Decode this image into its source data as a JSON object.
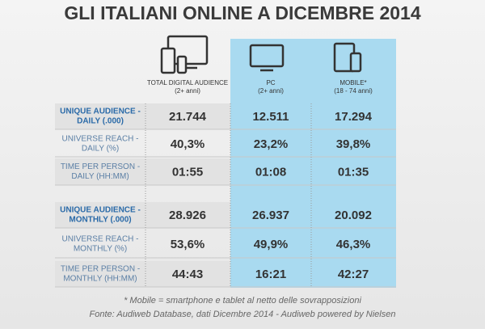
{
  "title": "GLI ITALIANI ONLINE A DICEMBRE 2014",
  "table": {
    "columns": [
      {
        "name": "TOTAL DIGITAL AUDIENCE",
        "sub": "(2+ anni)"
      },
      {
        "name": "PC",
        "sub": "(2+ anni)"
      },
      {
        "name": "MOBILE*",
        "sub": "(18 - 74 anni)"
      }
    ],
    "rows": [
      {
        "label": [
          "UNIQUE AUDIENCE -",
          "DAILY (.000)"
        ],
        "cells": [
          "21.744",
          "12.511",
          "17.294"
        ]
      },
      {
        "label": [
          "UNIVERSE REACH -",
          "DAILY (%)"
        ],
        "cells": [
          "40,3%",
          "23,2%",
          "39,8%"
        ]
      },
      {
        "label": [
          "TIME PER PERSON -",
          "DAILY (HH:MM)"
        ],
        "cells": [
          "01:55",
          "01:08",
          "01:35"
        ]
      },
      {
        "label": [
          "UNIQUE AUDIENCE -",
          "MONTHLY (.000)"
        ],
        "cells": [
          "28.926",
          "26.937",
          "20.092"
        ]
      },
      {
        "label": [
          "UNIVERSE REACH -",
          "MONTHLY (%)"
        ],
        "cells": [
          "53,6%",
          "49,9%",
          "46,3%"
        ]
      },
      {
        "label": [
          "TIME PER PERSON -",
          "MONTHLY (HH:MM)"
        ],
        "cells": [
          "44:43",
          "16:21",
          "42:27"
        ]
      }
    ]
  },
  "footnote": "* Mobile = smartphone e tablet al netto delle sovrapposizioni",
  "source": "Fonte: Audiweb Database, dati Dicembre 2014 - Audiweb powered by Nielsen"
}
